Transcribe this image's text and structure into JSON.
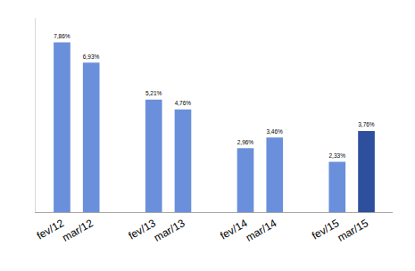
{
  "chart_data": {
    "type": "bar",
    "categories": [
      "fev/12",
      "mar/12",
      "fev/13",
      "mar/13",
      "fev/14",
      "mar/14",
      "fev/15",
      "mar/15"
    ],
    "values": [
      7.86,
      6.93,
      5.21,
      4.76,
      2.96,
      3.46,
      2.33,
      3.76
    ],
    "value_labels": [
      "7,86%",
      "6,93%",
      "5,21%",
      "4,76%",
      "2,96%",
      "3,46%",
      "2,33%",
      "3,76%"
    ],
    "colors": [
      "#6A8FDB",
      "#6A8FDB",
      "#6A8FDB",
      "#6A8FDB",
      "#6A8FDB",
      "#6A8FDB",
      "#6A8FDB",
      "#2E4E9E"
    ],
    "ylim": [
      0,
      9
    ],
    "yticks": [
      0
    ],
    "grid": false,
    "data_labels": true,
    "tick_labels": "x"
  }
}
